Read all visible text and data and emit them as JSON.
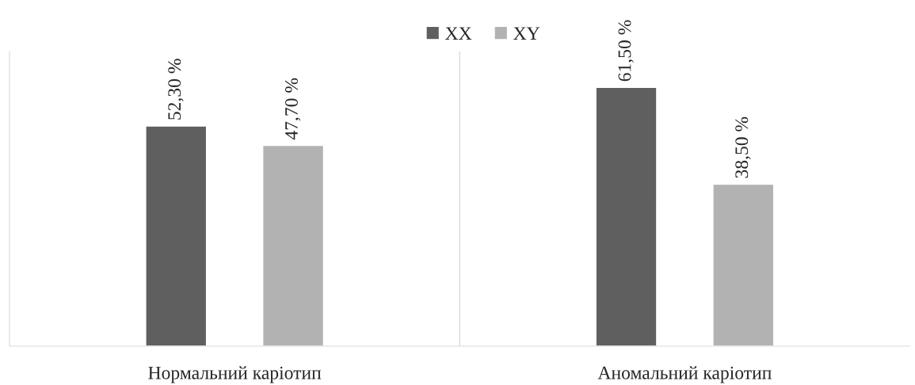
{
  "chart_data": {
    "type": "bar",
    "categories": [
      "Нормальний каріотип",
      "Аномальний каріотип"
    ],
    "series": [
      {
        "name": "XX",
        "color": "#5f5f5f",
        "values": [
          52.3,
          61.5
        ],
        "value_labels": [
          "52,30 %",
          "61,50 %"
        ]
      },
      {
        "name": "XY",
        "color": "#b2b2b2",
        "values": [
          47.7,
          38.5
        ],
        "value_labels": [
          "47,70 %",
          "38,50 %"
        ]
      }
    ],
    "ylim": [
      0,
      70
    ],
    "tick_labels": "x",
    "legend": "top",
    "grid": false
  }
}
